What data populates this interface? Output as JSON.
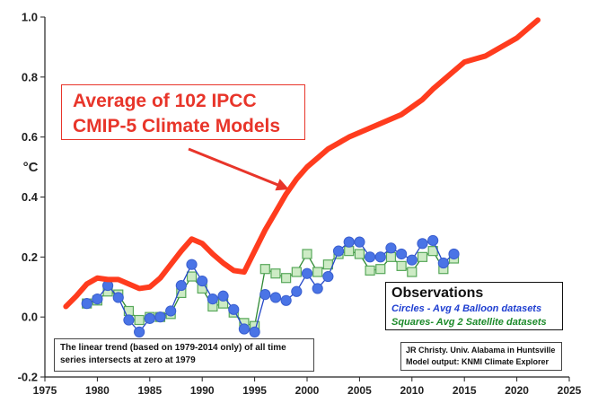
{
  "chart_data": {
    "type": "line",
    "ylabel": "°C",
    "xlim": [
      1975,
      2025
    ],
    "ylim": [
      -0.2,
      1.0
    ],
    "x_ticks": [
      "1975",
      "1980",
      "1985",
      "1990",
      "1995",
      "2000",
      "2005",
      "2010",
      "2015",
      "2020",
      "2025"
    ],
    "y_ticks": [
      "1.0",
      "0.8",
      "0.6",
      "0.4",
      "0.2",
      "0.0",
      "-0.2"
    ],
    "series": [
      {
        "name": "Average of 102 IPCC CMIP-5 Climate Models",
        "color": "#ff3c1e",
        "style": "thick-line",
        "x": [
          1977,
          1978,
          1979,
          1980,
          1981,
          1982,
          1983,
          1984,
          1985,
          1986,
          1987,
          1988,
          1989,
          1990,
          1991,
          1992,
          1993,
          1994,
          1995,
          1996,
          1997,
          1998,
          1999,
          2000,
          2001,
          2002,
          2003,
          2004,
          2005,
          2006,
          2007,
          2008,
          2009,
          2010,
          2011,
          2012,
          2013,
          2014,
          2015,
          2016,
          2017,
          2018,
          2019,
          2020,
          2021,
          2022
        ],
        "y": [
          0.035,
          0.07,
          0.11,
          0.13,
          0.125,
          0.125,
          0.11,
          0.095,
          0.1,
          0.13,
          0.175,
          0.22,
          0.26,
          0.245,
          0.21,
          0.18,
          0.155,
          0.15,
          0.22,
          0.29,
          0.35,
          0.41,
          0.46,
          0.5,
          0.53,
          0.56,
          0.58,
          0.6,
          0.615,
          0.63,
          0.645,
          0.66,
          0.675,
          0.7,
          0.725,
          0.76,
          0.79,
          0.82,
          0.85,
          0.86,
          0.87,
          0.89,
          0.91,
          0.93,
          0.96,
          0.99
        ]
      },
      {
        "name": "Circles - Avg 4 Balloon datasets",
        "color": "#3a63e0",
        "style": "circles",
        "x": [
          1979,
          1980,
          1981,
          1982,
          1983,
          1984,
          1985,
          1986,
          1987,
          1988,
          1989,
          1990,
          1991,
          1992,
          1993,
          1994,
          1995,
          1996,
          1997,
          1998,
          1999,
          2000,
          2001,
          2002,
          2003,
          2004,
          2005,
          2006,
          2007,
          2008,
          2009,
          2010,
          2011,
          2012,
          2013,
          2014
        ],
        "y": [
          0.045,
          0.06,
          0.105,
          0.065,
          -0.01,
          -0.05,
          -0.005,
          0.0,
          0.02,
          0.105,
          0.175,
          0.12,
          0.06,
          0.07,
          0.025,
          -0.04,
          -0.05,
          0.075,
          0.065,
          0.055,
          0.085,
          0.145,
          0.095,
          0.135,
          0.22,
          0.25,
          0.25,
          0.2,
          0.2,
          0.23,
          0.21,
          0.19,
          0.245,
          0.255,
          0.18,
          0.21
        ]
      },
      {
        "name": "Squares- Avg 2 Satellite datasets",
        "color": "#3c9a3c",
        "style": "squares",
        "x": [
          1979,
          1980,
          1981,
          1982,
          1983,
          1984,
          1985,
          1986,
          1987,
          1988,
          1989,
          1990,
          1991,
          1992,
          1993,
          1994,
          1995,
          1996,
          1997,
          1998,
          1999,
          2000,
          2001,
          2002,
          2003,
          2004,
          2005,
          2006,
          2007,
          2008,
          2009,
          2010,
          2011,
          2012,
          2013,
          2014
        ],
        "y": [
          0.045,
          0.055,
          0.085,
          0.075,
          0.02,
          -0.01,
          0.0,
          0.0,
          0.01,
          0.08,
          0.135,
          0.095,
          0.035,
          0.045,
          0.015,
          -0.02,
          -0.03,
          0.16,
          0.145,
          0.13,
          0.15,
          0.21,
          0.15,
          0.175,
          0.21,
          0.22,
          0.21,
          0.155,
          0.16,
          0.2,
          0.17,
          0.15,
          0.2,
          0.22,
          0.16,
          0.195
        ]
      }
    ],
    "annotations": {
      "callout_lines": [
        "Average of 102 IPCC",
        "CMIP-5 Climate Models"
      ],
      "obs_title": "Observations",
      "obs_balloon": "Circles - Avg 4 Balloon datasets",
      "obs_satellite": "Squares- Avg 2 Satellite datasets",
      "note_lines": [
        "The linear trend (based on 1979-2014 only) of all time",
        "series intersects at zero at 1979"
      ],
      "credit_lines": [
        "JR Christy. Univ. Alabama in Huntsville",
        "Model output: KNMI Climate Explorer"
      ]
    },
    "grid": false,
    "legend": "bottom-right"
  }
}
